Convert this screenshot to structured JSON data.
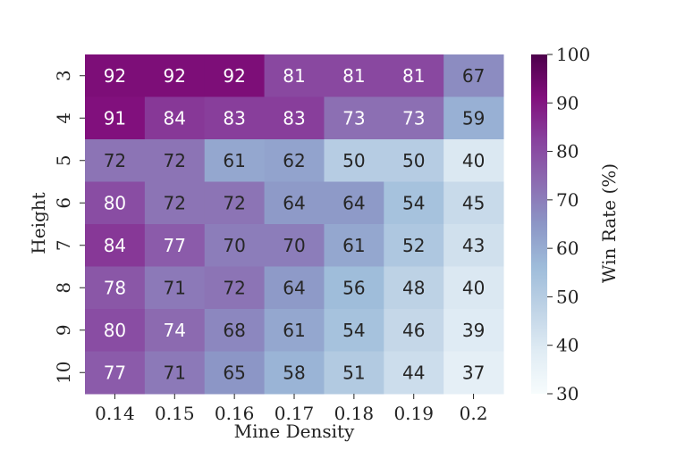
{
  "chart_data": {
    "type": "heatmap",
    "title": "",
    "xlabel": "Mine Density",
    "ylabel": "Height",
    "x_categories": [
      "0.14",
      "0.15",
      "0.16",
      "0.17",
      "0.18",
      "0.19",
      "0.2"
    ],
    "y_categories": [
      "3",
      "4",
      "5",
      "6",
      "7",
      "8",
      "9",
      "10"
    ],
    "values": [
      [
        92,
        92,
        92,
        81,
        81,
        81,
        67
      ],
      [
        91,
        84,
        83,
        83,
        73,
        73,
        59
      ],
      [
        72,
        72,
        61,
        62,
        50,
        50,
        40
      ],
      [
        80,
        72,
        72,
        64,
        64,
        54,
        45
      ],
      [
        84,
        77,
        70,
        70,
        61,
        52,
        43
      ],
      [
        78,
        71,
        72,
        64,
        56,
        48,
        40
      ],
      [
        80,
        74,
        68,
        61,
        54,
        46,
        39
      ],
      [
        77,
        71,
        65,
        58,
        51,
        44,
        37
      ]
    ],
    "colorbar": {
      "label": "Win Rate (%)",
      "min": 30,
      "max": 100,
      "ticks": [
        "30",
        "40",
        "50",
        "60",
        "70",
        "80",
        "90",
        "100"
      ]
    },
    "colormap": [
      "#f7fcfd",
      "#e0ecf4",
      "#bfd3e6",
      "#9ebcda",
      "#8c96c6",
      "#8c6bb1",
      "#88419d",
      "#810f7c",
      "#4d004b"
    ]
  }
}
